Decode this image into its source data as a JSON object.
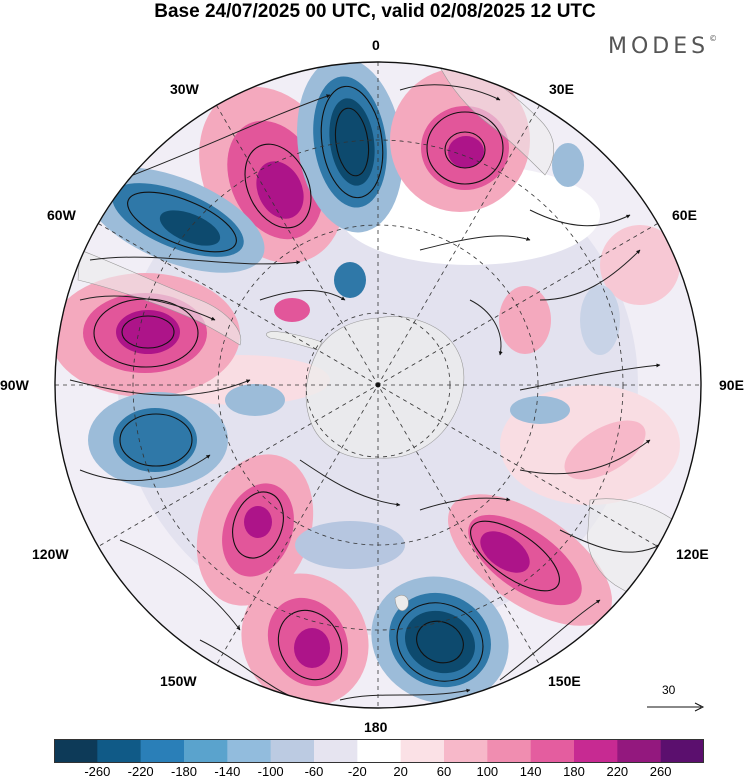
{
  "header": {
    "title": "Base 24/07/2025 00 UTC, valid 02/08/2025 12 UTC",
    "brand": "MODES",
    "brand_mark": "©"
  },
  "map": {
    "projection": "south polar stereographic",
    "longitude_labels": {
      "lon_0": "0",
      "lon_30e": "30E",
      "lon_60e": "60E",
      "lon_90e": "90E",
      "lon_120e": "120E",
      "lon_150e": "150E",
      "lon_180": "180",
      "lon_150w": "150W",
      "lon_120w": "120W",
      "lon_90w": "90W",
      "lon_60w": "60W",
      "lon_30w": "30W"
    },
    "colors": {
      "neg_strong": "#0d4a6e",
      "neg_mid": "#2f78a8",
      "neg_light": "#9cbcd9",
      "neg_faint": "#dcdded",
      "pos_faint": "#f9dde3",
      "pos_light": "#f4a9be",
      "pos_mid": "#e2569a",
      "pos_strong": "#ad1489",
      "land": "#ececec"
    }
  },
  "vector_scale": {
    "value": "30"
  },
  "colorbar": {
    "colors": [
      "#0d3a58",
      "#105a87",
      "#2a7fb8",
      "#5aa3cd",
      "#92bcdd",
      "#bccbe2",
      "#e6e4f0",
      "#ffffff",
      "#fbe1e6",
      "#f7b8c9",
      "#f08db0",
      "#e45d9f",
      "#c72a92",
      "#93187e",
      "#5b0f6e"
    ],
    "ticks": [
      "-260",
      "-220",
      "-180",
      "-140",
      "-100",
      "-60",
      "-20",
      "20",
      "60",
      "100",
      "140",
      "180",
      "220",
      "260"
    ]
  }
}
